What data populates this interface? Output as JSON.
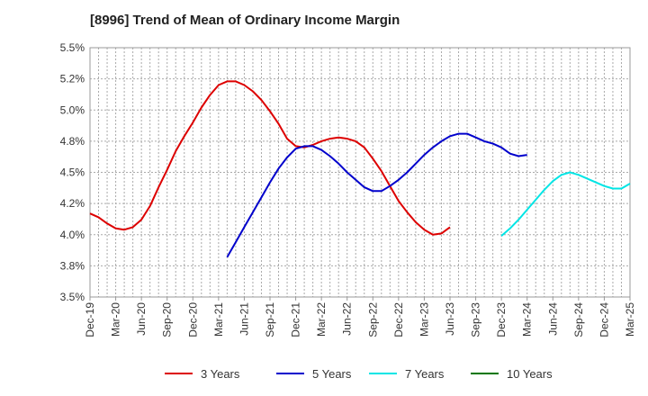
{
  "chart_data": {
    "type": "line",
    "title": "[8996]  Trend of Mean of Ordinary Income Margin",
    "xlabel": "",
    "ylabel": "",
    "x_tick_labels": [
      "Dec-19",
      "Mar-20",
      "Jun-20",
      "Sep-20",
      "Dec-20",
      "Mar-21",
      "Jun-21",
      "Sep-21",
      "Dec-21",
      "Mar-22",
      "Jun-22",
      "Sep-22",
      "Dec-22",
      "Mar-23",
      "Jun-23",
      "Sep-23",
      "Dec-23",
      "Mar-24",
      "Jun-24",
      "Sep-24",
      "Dec-24",
      "Mar-25"
    ],
    "y_tick_labels": [
      "3.5%",
      "3.8%",
      "4.0%",
      "4.2%",
      "4.5%",
      "4.8%",
      "5.0%",
      "5.2%",
      "5.5%"
    ],
    "ylim": [
      3.5,
      5.5
    ],
    "grid": true,
    "legend_position": "bottom",
    "series": [
      {
        "name": "3 Years",
        "color": "#dd0000",
        "start_index": 0,
        "values": [
          4.17,
          4.14,
          4.09,
          4.05,
          4.04,
          4.06,
          4.12,
          4.23,
          4.38,
          4.52,
          4.67,
          4.79,
          4.9,
          5.02,
          5.12,
          5.2,
          5.23,
          5.23,
          5.2,
          5.15,
          5.08,
          4.99,
          4.89,
          4.77,
          4.71,
          4.7,
          4.72,
          4.75,
          4.77,
          4.78,
          4.77,
          4.75,
          4.7,
          4.61,
          4.51,
          4.39,
          4.27,
          4.18,
          4.1,
          4.04,
          4.0,
          4.01,
          4.06
        ]
      },
      {
        "name": "5 Years",
        "color": "#0000cc",
        "start_index": 16,
        "values": [
          3.82,
          3.94,
          4.06,
          4.18,
          4.3,
          4.42,
          4.53,
          4.62,
          4.69,
          4.71,
          4.71,
          4.68,
          4.63,
          4.57,
          4.5,
          4.44,
          4.38,
          4.35,
          4.35,
          4.39,
          4.44,
          4.5,
          4.57,
          4.64,
          4.7,
          4.75,
          4.79,
          4.81,
          4.81,
          4.78,
          4.75,
          4.73,
          4.7,
          4.65,
          4.63,
          4.64
        ]
      },
      {
        "name": "7 Years",
        "color": "#00e5e5",
        "start_index": 48,
        "values": [
          3.99,
          4.05,
          4.12,
          4.2,
          4.28,
          4.36,
          4.43,
          4.48,
          4.5,
          4.48,
          4.45,
          4.42,
          4.39,
          4.37,
          4.37,
          4.41
        ]
      },
      {
        "name": "10 Years",
        "color": "#007700",
        "start_index": 0,
        "values": []
      }
    ]
  }
}
